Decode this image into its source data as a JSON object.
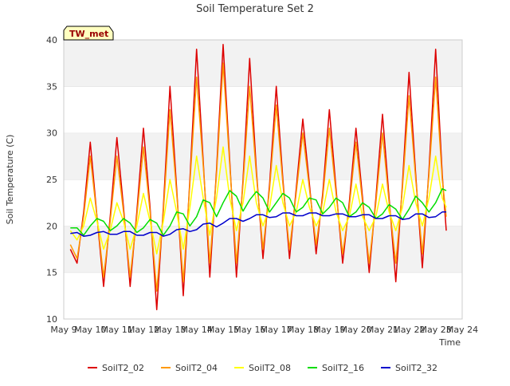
{
  "chart_data": {
    "type": "line",
    "title": "Soil Temperature Set 2",
    "xlabel": "Time",
    "ylabel": "Soil Temperature (C)",
    "xlim": [
      9,
      24
    ],
    "ylim": [
      10,
      40
    ],
    "x_ticks": [
      {
        "value": 9,
        "label": "May 9"
      },
      {
        "value": 10,
        "label": "May 10"
      },
      {
        "value": 11,
        "label": "May 11"
      },
      {
        "value": 12,
        "label": "May 12"
      },
      {
        "value": 13,
        "label": "May 13"
      },
      {
        "value": 14,
        "label": "May 14"
      },
      {
        "value": 15,
        "label": "May 15"
      },
      {
        "value": 16,
        "label": "May 16"
      },
      {
        "value": 17,
        "label": "May 17"
      },
      {
        "value": 18,
        "label": "May 18"
      },
      {
        "value": 19,
        "label": "May 19"
      },
      {
        "value": 20,
        "label": "May 20"
      },
      {
        "value": 21,
        "label": "May 21"
      },
      {
        "value": 22,
        "label": "May 22"
      },
      {
        "value": 23,
        "label": "May 23"
      },
      {
        "value": 24,
        "label": "May 24"
      }
    ],
    "y_ticks": [
      10,
      15,
      20,
      25,
      30,
      35,
      40
    ],
    "grid": "horizontal bands",
    "legend_position": "bottom",
    "annotation": "TW_met",
    "series": [
      {
        "name": "SoilT2_02",
        "color": "#dd0000",
        "x": [
          9.25,
          9.5,
          9.75,
          10.0,
          10.25,
          10.5,
          10.75,
          11.0,
          11.25,
          11.5,
          11.75,
          12.0,
          12.25,
          12.5,
          12.75,
          13.0,
          13.25,
          13.5,
          13.75,
          14.0,
          14.25,
          14.5,
          14.75,
          15.0,
          15.25,
          15.5,
          15.75,
          16.0,
          16.25,
          16.5,
          16.75,
          17.0,
          17.25,
          17.5,
          17.75,
          18.0,
          18.25,
          18.5,
          18.75,
          19.0,
          19.25,
          19.5,
          19.75,
          20.0,
          20.25,
          20.5,
          20.75,
          21.0,
          21.25,
          21.5,
          21.75,
          22.0,
          22.25,
          22.5,
          22.75,
          23.0,
          23.25,
          23.4
        ],
        "values": [
          17.5,
          16.0,
          21.5,
          29.0,
          21.0,
          13.5,
          21.0,
          29.5,
          22.0,
          13.5,
          21.5,
          30.5,
          22.0,
          11.0,
          22.0,
          35.0,
          24.0,
          12.5,
          25.0,
          39.0,
          27.0,
          14.5,
          26.0,
          39.5,
          27.0,
          14.5,
          25.0,
          38.0,
          26.0,
          16.5,
          24.5,
          35.0,
          25.0,
          16.5,
          24.0,
          31.5,
          24.5,
          17.0,
          23.5,
          32.5,
          24.0,
          16.0,
          22.5,
          30.5,
          23.0,
          15.0,
          23.0,
          32.0,
          23.0,
          14.0,
          24.5,
          36.5,
          25.5,
          15.5,
          26.0,
          39.0,
          25.5,
          19.5
        ]
      },
      {
        "name": "SoilT2_04",
        "color": "#ff9900",
        "x": [
          9.25,
          9.5,
          9.75,
          10.0,
          10.25,
          10.5,
          10.75,
          11.0,
          11.25,
          11.5,
          11.75,
          12.0,
          12.25,
          12.5,
          12.75,
          13.0,
          13.25,
          13.5,
          13.75,
          14.0,
          14.25,
          14.5,
          14.75,
          15.0,
          15.25,
          15.5,
          15.75,
          16.0,
          16.25,
          16.5,
          16.75,
          17.0,
          17.25,
          17.5,
          17.75,
          18.0,
          18.25,
          18.5,
          18.75,
          19.0,
          19.25,
          19.5,
          19.75,
          20.0,
          20.25,
          20.5,
          20.75,
          21.0,
          21.25,
          21.5,
          21.75,
          22.0,
          22.25,
          22.5,
          22.75,
          23.0,
          23.25,
          23.4
        ],
        "values": [
          18.0,
          16.5,
          21.0,
          27.5,
          21.0,
          14.5,
          20.5,
          27.5,
          21.5,
          14.5,
          21.0,
          28.5,
          21.5,
          13.0,
          21.5,
          32.5,
          23.5,
          14.0,
          24.5,
          36.0,
          26.5,
          16.0,
          25.5,
          37.5,
          26.5,
          16.0,
          24.5,
          35.0,
          25.5,
          17.5,
          24.0,
          33.0,
          24.5,
          17.5,
          23.5,
          30.0,
          24.0,
          18.0,
          23.0,
          30.5,
          23.5,
          17.0,
          22.0,
          29.0,
          22.5,
          16.0,
          22.5,
          30.0,
          22.5,
          16.0,
          24.0,
          34.0,
          25.0,
          17.0,
          25.5,
          36.0,
          25.0,
          21.0
        ]
      },
      {
        "name": "SoilT2_08",
        "color": "#ffff00",
        "x": [
          9.25,
          9.5,
          9.75,
          10.0,
          10.25,
          10.5,
          10.75,
          11.0,
          11.25,
          11.5,
          11.75,
          12.0,
          12.25,
          12.5,
          12.75,
          13.0,
          13.25,
          13.5,
          13.75,
          14.0,
          14.25,
          14.5,
          14.75,
          15.0,
          15.25,
          15.5,
          15.75,
          16.0,
          16.25,
          16.5,
          16.75,
          17.0,
          17.25,
          17.5,
          17.75,
          18.0,
          18.25,
          18.5,
          18.75,
          19.0,
          19.25,
          19.5,
          19.75,
          20.0,
          20.25,
          20.5,
          20.75,
          21.0,
          21.25,
          21.5,
          21.75,
          22.0,
          22.25,
          22.5,
          22.75,
          23.0,
          23.25,
          23.4
        ],
        "values": [
          19.5,
          18.5,
          20.0,
          23.0,
          20.5,
          17.5,
          19.5,
          22.5,
          20.5,
          17.5,
          20.0,
          23.5,
          20.5,
          17.0,
          20.5,
          25.0,
          21.5,
          17.5,
          22.0,
          27.5,
          23.0,
          19.0,
          23.0,
          28.5,
          23.0,
          19.5,
          22.5,
          27.5,
          22.5,
          20.0,
          22.0,
          26.5,
          22.5,
          20.0,
          21.5,
          25.0,
          22.0,
          20.0,
          21.5,
          25.0,
          21.5,
          19.5,
          21.0,
          24.5,
          21.0,
          19.5,
          21.0,
          24.5,
          21.5,
          19.5,
          22.0,
          26.5,
          22.5,
          20.0,
          23.0,
          27.5,
          23.0,
          22.0
        ]
      },
      {
        "name": "SoilT2_16",
        "color": "#00dd00",
        "x": [
          9.25,
          9.5,
          9.75,
          10.0,
          10.25,
          10.5,
          10.75,
          11.0,
          11.25,
          11.5,
          11.75,
          12.0,
          12.25,
          12.5,
          12.75,
          13.0,
          13.25,
          13.5,
          13.75,
          14.0,
          14.25,
          14.5,
          14.75,
          15.0,
          15.25,
          15.5,
          15.75,
          16.0,
          16.25,
          16.5,
          16.75,
          17.0,
          17.25,
          17.5,
          17.75,
          18.0,
          18.25,
          18.5,
          18.75,
          19.0,
          19.25,
          19.5,
          19.75,
          20.0,
          20.25,
          20.5,
          20.75,
          21.0,
          21.25,
          21.5,
          21.75,
          22.0,
          22.25,
          22.5,
          22.75,
          23.0,
          23.25,
          23.4
        ],
        "values": [
          19.8,
          19.8,
          19.0,
          20.0,
          20.8,
          20.5,
          19.5,
          20.0,
          20.8,
          20.3,
          19.3,
          19.8,
          20.7,
          20.3,
          19.0,
          20.0,
          21.5,
          21.3,
          20.0,
          21.0,
          22.8,
          22.5,
          21.0,
          22.5,
          23.8,
          23.2,
          21.6,
          22.8,
          23.7,
          23.0,
          21.5,
          22.5,
          23.5,
          23.0,
          21.5,
          22.0,
          23.0,
          22.8,
          21.3,
          22.0,
          23.0,
          22.5,
          21.0,
          21.5,
          22.5,
          22.0,
          20.8,
          21.3,
          22.3,
          21.8,
          20.7,
          21.8,
          23.2,
          22.5,
          21.5,
          22.5,
          24.0,
          23.8
        ]
      },
      {
        "name": "SoilT2_32",
        "color": "#0000cc",
        "x": [
          9.25,
          9.5,
          9.75,
          10.0,
          10.25,
          10.5,
          10.75,
          11.0,
          11.25,
          11.5,
          11.75,
          12.0,
          12.25,
          12.5,
          12.75,
          13.0,
          13.25,
          13.5,
          13.75,
          14.0,
          14.25,
          14.5,
          14.75,
          15.0,
          15.25,
          15.5,
          15.75,
          16.0,
          16.25,
          16.5,
          16.75,
          17.0,
          17.25,
          17.5,
          17.75,
          18.0,
          18.25,
          18.5,
          18.75,
          19.0,
          19.25,
          19.5,
          19.75,
          20.0,
          20.25,
          20.5,
          20.75,
          21.0,
          21.25,
          21.5,
          21.75,
          22.0,
          22.25,
          22.5,
          22.75,
          23.0,
          23.25,
          23.4
        ],
        "values": [
          19.2,
          19.3,
          18.9,
          19.0,
          19.3,
          19.4,
          19.1,
          19.1,
          19.4,
          19.4,
          19.0,
          19.0,
          19.3,
          19.3,
          18.9,
          19.1,
          19.6,
          19.7,
          19.4,
          19.6,
          20.2,
          20.3,
          19.9,
          20.3,
          20.8,
          20.8,
          20.5,
          20.8,
          21.2,
          21.2,
          20.9,
          21.0,
          21.4,
          21.4,
          21.1,
          21.1,
          21.4,
          21.4,
          21.1,
          21.1,
          21.3,
          21.3,
          21.0,
          21.0,
          21.2,
          21.2,
          20.8,
          20.8,
          21.1,
          21.1,
          20.7,
          20.8,
          21.3,
          21.3,
          20.9,
          21.0,
          21.5,
          21.5
        ]
      }
    ]
  }
}
